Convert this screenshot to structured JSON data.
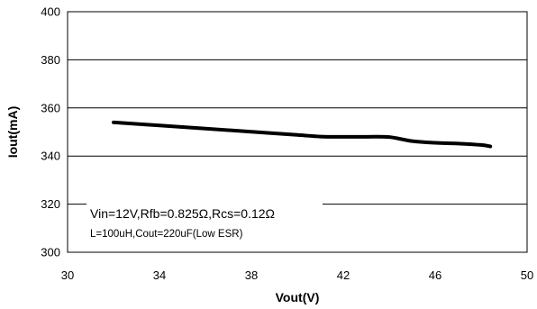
{
  "chart_data": {
    "type": "line",
    "title": "",
    "xlabel": "Vout(V)",
    "ylabel": "Iout(mA)",
    "xlim": [
      30,
      50
    ],
    "ylim": [
      300,
      400
    ],
    "xticks": [
      "30",
      "34",
      "38",
      "42",
      "46",
      "50"
    ],
    "yticks": [
      "300",
      "320",
      "340",
      "360",
      "380",
      "400"
    ],
    "grid": true,
    "series": [
      {
        "x": [
          32,
          34,
          36,
          38,
          40,
          41,
          42,
          43,
          44,
          45,
          46,
          47,
          48,
          48.4
        ],
        "y": [
          354,
          352.7,
          351.4,
          350.1,
          348.8,
          348.1,
          348,
          348,
          347.9,
          346.2,
          345.5,
          345.2,
          344.6,
          344
        ],
        "color": "#000000"
      }
    ],
    "annotations": [
      "Vin=12V,Rfb=0.825Ω,Rcs=0.12Ω",
      "L=100uH,Cout=220uF(Low ESR)"
    ]
  }
}
